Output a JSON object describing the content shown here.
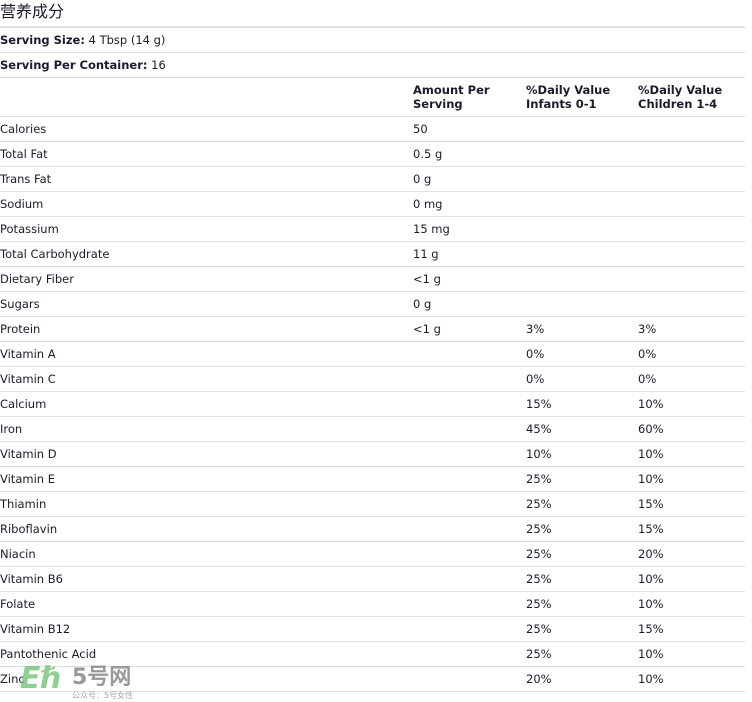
{
  "title": "营养成分",
  "serving_size": {
    "label": "Serving Size:",
    "value": "4 Tbsp (14 g)"
  },
  "serving_per_container": {
    "label": "Serving Per Container:",
    "value": "16"
  },
  "headers": [
    "",
    "Amount Per Serving",
    "%Daily Value Infants 0-1",
    "%Daily Value Children 1-4"
  ],
  "rows": [
    [
      "Calories",
      "50",
      "",
      ""
    ],
    [
      "Total Fat",
      "0.5 g",
      "",
      ""
    ],
    [
      "Trans Fat",
      "0 g",
      "",
      ""
    ],
    [
      "Sodium",
      "0 mg",
      "",
      ""
    ],
    [
      "Potassium",
      "15 mg",
      "",
      ""
    ],
    [
      "Total Carbohydrate",
      "11 g",
      "",
      ""
    ],
    [
      "Dietary Fiber",
      "<1 g",
      "",
      ""
    ],
    [
      "Sugars",
      "0 g",
      "",
      ""
    ],
    [
      "Protein",
      "<1 g",
      "3%",
      "3%"
    ],
    [
      "Vitamin A",
      "",
      "0%",
      "0%"
    ],
    [
      "Vitamin C",
      "",
      "0%",
      "0%"
    ],
    [
      "Calcium",
      "",
      "15%",
      "10%"
    ],
    [
      "Iron",
      "",
      "45%",
      "60%"
    ],
    [
      "Vitamin D",
      "",
      "10%",
      "10%"
    ],
    [
      "Vitamin E",
      "",
      "25%",
      "10%"
    ],
    [
      "Thiamin",
      "",
      "25%",
      "15%"
    ],
    [
      "Riboflavin",
      "",
      "25%",
      "15%"
    ],
    [
      "Niacin",
      "",
      "25%",
      "20%"
    ],
    [
      "Vitamin B6",
      "",
      "25%",
      "10%"
    ],
    [
      "Folate",
      "",
      "25%",
      "10%"
    ],
    [
      "Vitamin B12",
      "",
      "25%",
      "15%"
    ],
    [
      "Pantothenic Acid",
      "",
      "25%",
      "10%"
    ],
    [
      "Zinc",
      "",
      "20%",
      "10%"
    ]
  ],
  "watermark": {
    "logo": "5号网",
    "subtitle": "公众号：5号女性"
  }
}
